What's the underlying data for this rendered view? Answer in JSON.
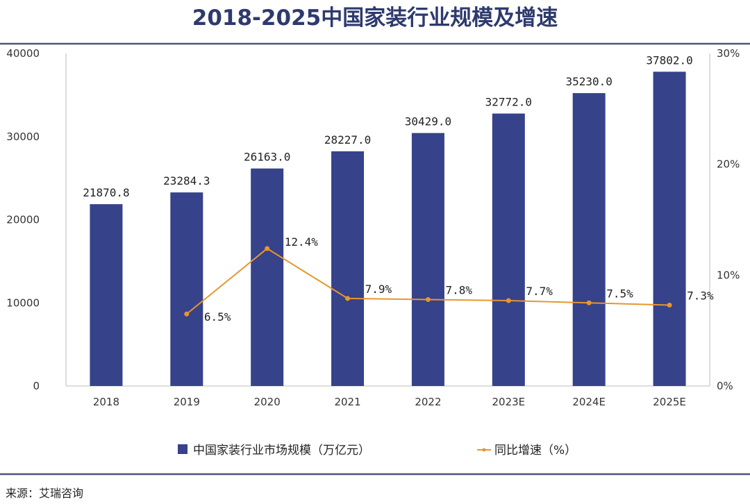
{
  "chart_data": {
    "type": "bar",
    "title": "2018-2025中国家装行业规模及增速",
    "categories": [
      "2018",
      "2019",
      "2020",
      "2021",
      "2022",
      "2023E",
      "2024E",
      "2025E"
    ],
    "series": [
      {
        "name": "中国家装行业市场规模（万亿元）",
        "type": "bar",
        "axis": "left",
        "color": "#36428a",
        "values": [
          21870.8,
          23284.3,
          26163.0,
          28227.0,
          30429.0,
          32772.0,
          35230.0,
          37802.0
        ],
        "labels": [
          "21870.8",
          "23284.3",
          "26163.0",
          "28227.0",
          "30429.0",
          "32772.0",
          "35230.0",
          "37802.0"
        ]
      },
      {
        "name": "同比增速（%）",
        "type": "line",
        "axis": "right",
        "color": "#e8962e",
        "values": [
          null,
          6.5,
          12.4,
          7.9,
          7.8,
          7.7,
          7.5,
          7.3
        ],
        "labels": [
          "",
          "6.5%",
          "12.4%",
          "7.9%",
          "7.8%",
          "7.7%",
          "7.5%",
          "7.3%"
        ]
      }
    ],
    "ylim": [
      0,
      40000
    ],
    "y_ticks": [
      "0",
      "10000",
      "20000",
      "30000",
      "40000"
    ],
    "y2lim": [
      0,
      30
    ],
    "y2_ticks": [
      "0%",
      "10%",
      "20%",
      "30%"
    ],
    "grid": false,
    "legend_position": "bottom"
  },
  "source": "来源：艾瑞咨询",
  "colors": {
    "title": "#2e3a6e",
    "rule": "#4a5580"
  }
}
